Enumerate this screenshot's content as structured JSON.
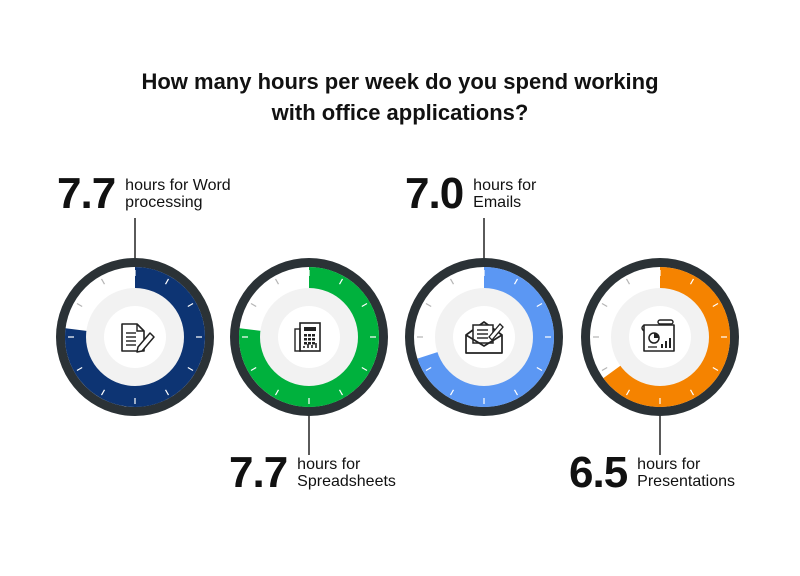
{
  "title": {
    "line1": "How many hours per week do you spend working",
    "line2": "with office applications?"
  },
  "chart_data": {
    "type": "radial-gauge",
    "max_hours_scale": 10,
    "gauges": [
      {
        "name": "Word processing",
        "value": 7.7,
        "value_label": "7.7",
        "text_line1": "hours for Word",
        "text_line2": "processing",
        "color": "#0d3473",
        "icon": "document-pen-icon"
      },
      {
        "name": "Spreadsheets",
        "value": 7.7,
        "value_label": "7.7",
        "text_line1": "hours for",
        "text_line2": "Spreadsheets",
        "color": "#00b13d",
        "icon": "spreadsheet-icon"
      },
      {
        "name": "Emails",
        "value": 7.0,
        "value_label": "7.0",
        "text_line1": "hours for",
        "text_line2": "Emails",
        "color": "#5b97f3",
        "icon": "envelope-icon"
      },
      {
        "name": "Presentations",
        "value": 6.5,
        "value_label": "6.5",
        "text_line1": "hours for",
        "text_line2": "Presentations",
        "color": "#f58300",
        "icon": "presentation-icon"
      }
    ]
  },
  "colors": {
    "ring": "#2b3236",
    "inner": "#f2f2f2",
    "center": "#ffffff",
    "tick": "#ffffff"
  }
}
